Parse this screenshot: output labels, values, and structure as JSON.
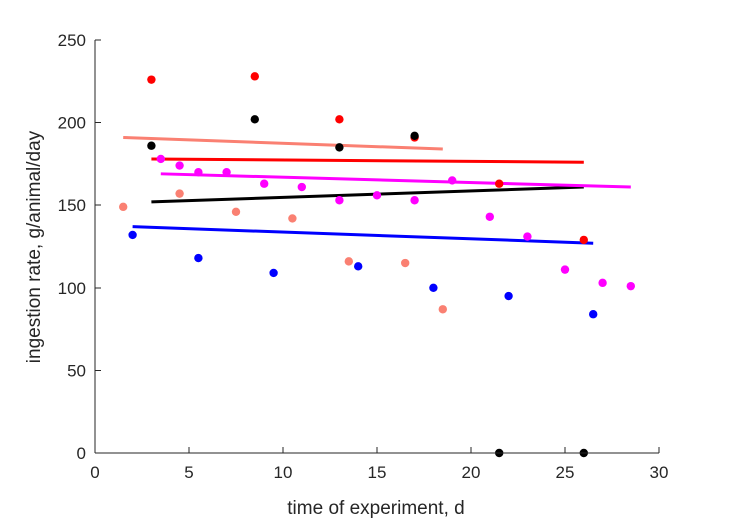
{
  "chart_data": {
    "type": "scatter",
    "xlabel": "time of experiment, d",
    "ylabel": "ingestion rate, g/animal/day",
    "xlim": [
      0,
      30
    ],
    "ylim": [
      0,
      250
    ],
    "x_ticks": [
      0,
      5,
      10,
      15,
      20,
      25,
      30
    ],
    "y_ticks": [
      0,
      50,
      100,
      150,
      200,
      250
    ],
    "grid": false,
    "legend": "none",
    "series": [
      {
        "color": "#FF0000",
        "points": [
          [
            3,
            226
          ],
          [
            8.5,
            228
          ],
          [
            13,
            202
          ],
          [
            17,
            191
          ],
          [
            21.5,
            163
          ],
          [
            26,
            129
          ]
        ],
        "trend": [
          [
            3,
            178
          ],
          [
            26,
            176
          ]
        ]
      },
      {
        "color": "#000000",
        "points": [
          [
            3,
            186
          ],
          [
            8.5,
            202
          ],
          [
            13,
            185
          ],
          [
            17,
            192
          ],
          [
            21.5,
            0
          ],
          [
            26,
            0
          ]
        ],
        "trend": [
          [
            3,
            152
          ],
          [
            26,
            161
          ]
        ]
      },
      {
        "color": "#FA8072",
        "points": [
          [
            1.5,
            149
          ],
          [
            4.5,
            157
          ],
          [
            7.5,
            146
          ],
          [
            10.5,
            142
          ],
          [
            13.5,
            116
          ],
          [
            16.5,
            115
          ],
          [
            18.5,
            87
          ]
        ],
        "trend": [
          [
            1.5,
            191
          ],
          [
            18.5,
            184
          ]
        ]
      },
      {
        "color": "#FF00FF",
        "points": [
          [
            3.5,
            178
          ],
          [
            4.5,
            174
          ],
          [
            5.5,
            170
          ],
          [
            7,
            170
          ],
          [
            9,
            163
          ],
          [
            11,
            161
          ],
          [
            13,
            153
          ],
          [
            15,
            156
          ],
          [
            17,
            153
          ],
          [
            19,
            165
          ],
          [
            21,
            143
          ],
          [
            23,
            131
          ],
          [
            25,
            111
          ],
          [
            27,
            103
          ],
          [
            28.5,
            101
          ]
        ],
        "trend": [
          [
            3.5,
            169
          ],
          [
            28.5,
            161
          ]
        ]
      },
      {
        "color": "#0000FF",
        "points": [
          [
            2,
            132
          ],
          [
            5.5,
            118
          ],
          [
            9.5,
            109
          ],
          [
            14,
            113
          ],
          [
            18,
            100
          ],
          [
            22,
            95
          ],
          [
            26.5,
            84
          ]
        ],
        "trend": [
          [
            2,
            137
          ],
          [
            26.5,
            127
          ]
        ]
      }
    ]
  }
}
